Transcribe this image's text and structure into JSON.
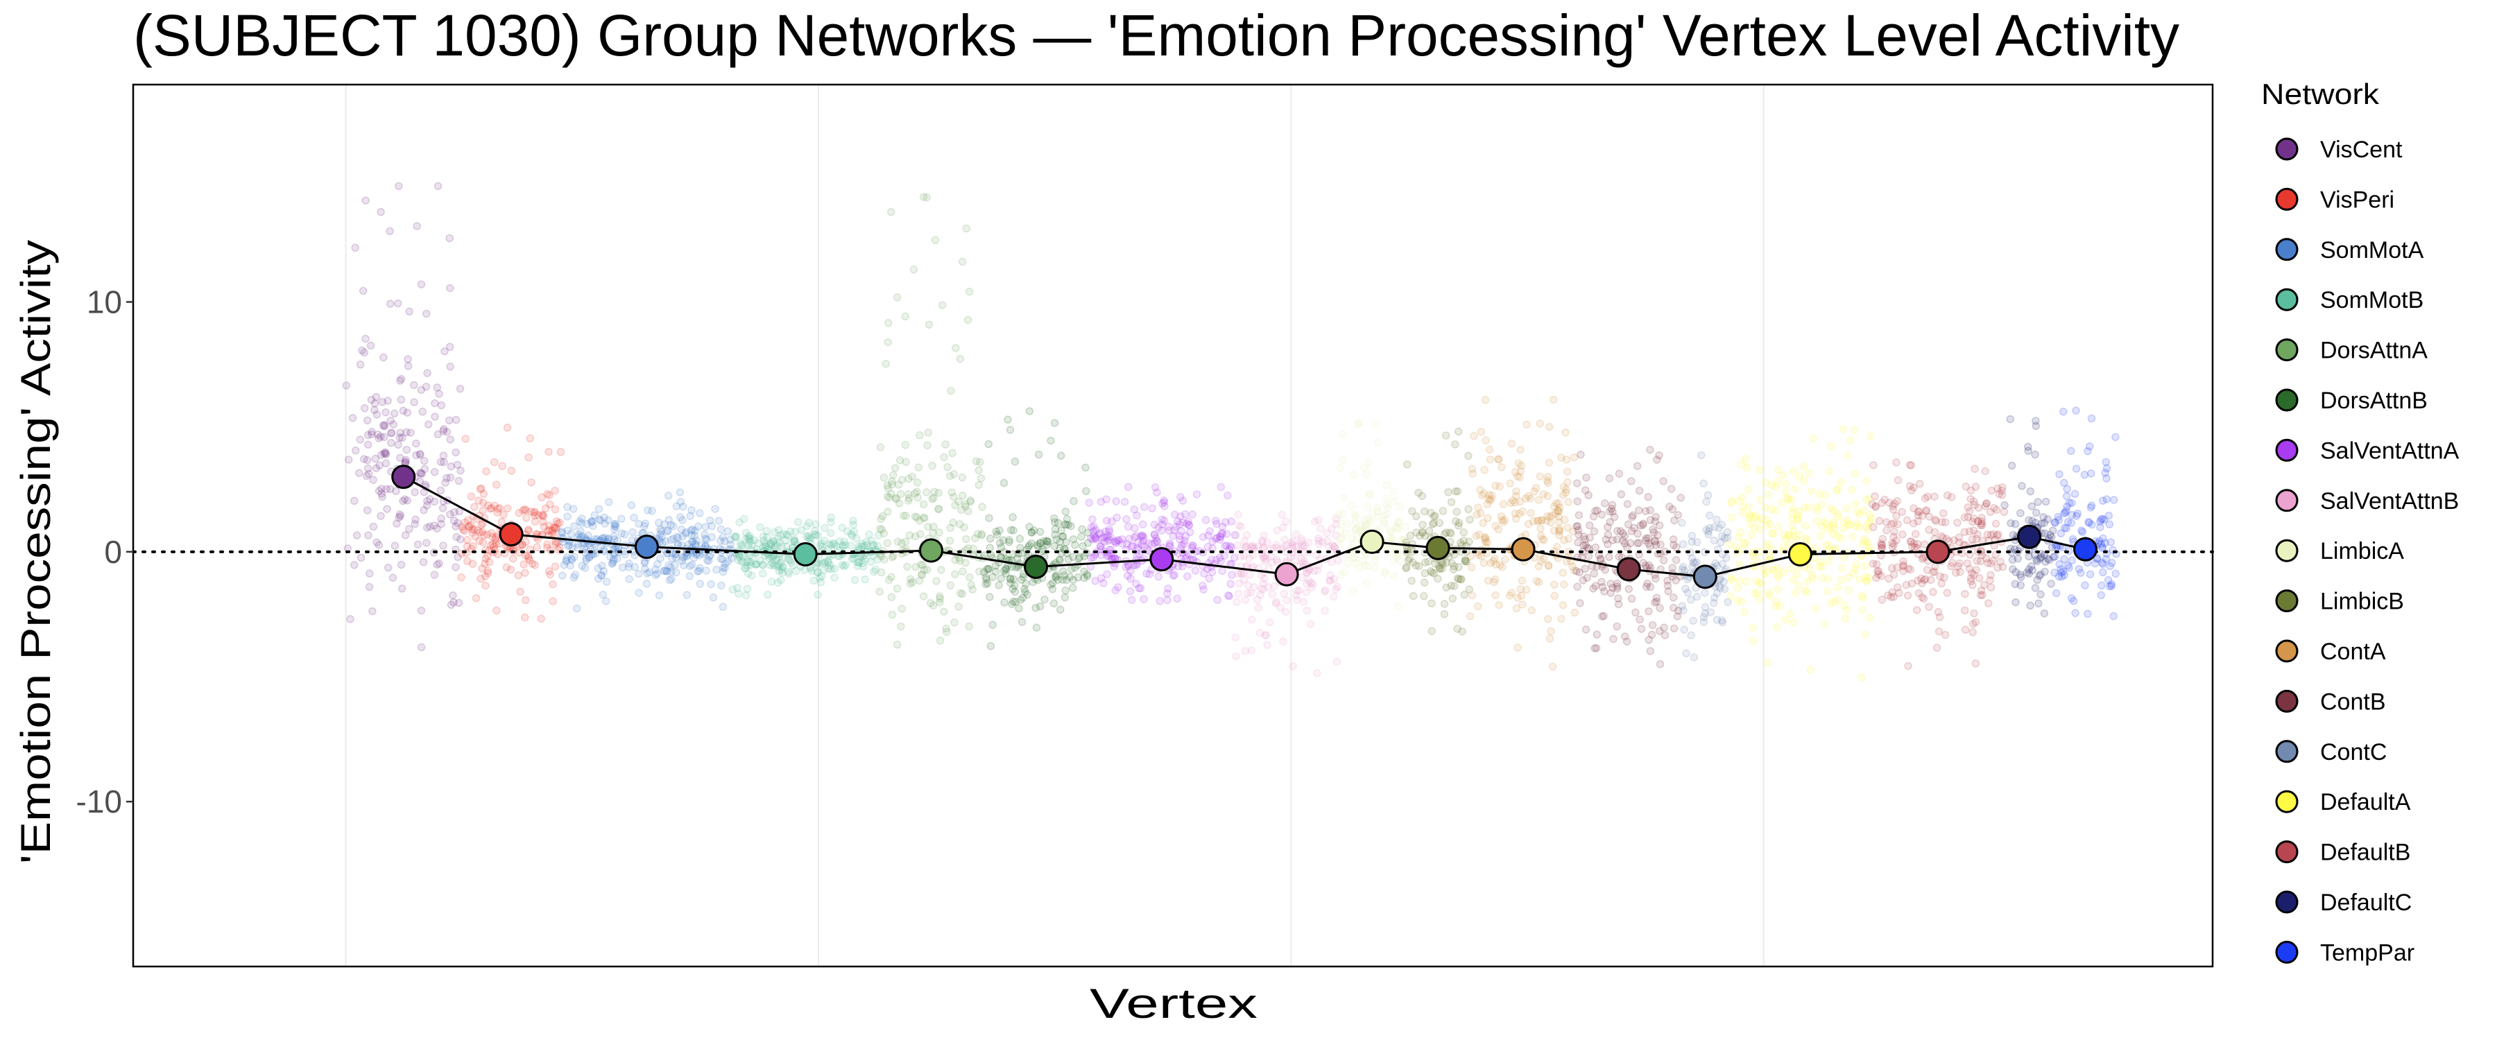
{
  "chart_data": {
    "type": "scatter",
    "title": "(SUBJECT 1030) Group Networks — 'Emotion Processing' Vertex Level Activity",
    "xlabel": "Vertex",
    "ylabel": "'Emotion Processing' Activity",
    "ylim": [
      -16.6,
      18.7
    ],
    "xlim": [
      -9000,
      79000
    ],
    "yticks": [
      10,
      0,
      -10
    ],
    "ytick_labels": [
      "10",
      "0",
      "-10"
    ],
    "x_gridlines": [
      0,
      20000,
      40000,
      60000
    ],
    "reference_line": {
      "y": 0,
      "style": "dotted"
    },
    "grid": true,
    "legend": {
      "title": "Network",
      "placement": "right"
    },
    "networks": [
      {
        "name": "VisCent",
        "color": "#71338A",
        "start": 0,
        "end": 4878,
        "mean": 3.0,
        "core": [
          -1.5,
          7.5
        ],
        "range": [
          -4.2,
          14.8
        ]
      },
      {
        "name": "VisPeri",
        "color": "#E8392F",
        "start": 4878,
        "end": 9122,
        "mean": 0.7,
        "core": [
          -1.0,
          2.2
        ],
        "range": [
          -2.7,
          5.0
        ]
      },
      {
        "name": "SomMotA",
        "color": "#4A7FCC",
        "start": 9122,
        "end": 16345,
        "mean": 0.2,
        "core": [
          -1.0,
          1.5
        ],
        "range": [
          -2.3,
          2.5
        ]
      },
      {
        "name": "SomMotB",
        "color": "#5BBE9E",
        "start": 16345,
        "end": 22553,
        "mean": -0.1,
        "core": [
          -1.0,
          1.0
        ],
        "range": [
          -1.8,
          1.5
        ]
      },
      {
        "name": "DorsAttnA",
        "color": "#6FA660",
        "start": 22553,
        "end": 26987,
        "mean": 0.05,
        "core": [
          -2.5,
          4.0
        ],
        "range": [
          -5.0,
          14.3
        ]
      },
      {
        "name": "DorsAttnB",
        "color": "#2A6A2A",
        "start": 26987,
        "end": 31422,
        "mean": -0.6,
        "core": [
          -2.0,
          1.5
        ],
        "range": [
          -3.8,
          5.8
        ]
      },
      {
        "name": "SalVentAttnA",
        "color": "#A93BF0",
        "start": 31422,
        "end": 37631,
        "mean": -0.3,
        "core": [
          -1.2,
          1.5
        ],
        "range": [
          -2.0,
          2.6
        ]
      },
      {
        "name": "SalVentAttnB",
        "color": "#EDA3D0",
        "start": 37631,
        "end": 42002,
        "mean": -0.9,
        "core": [
          -2.0,
          1.0
        ],
        "range": [
          -5.0,
          1.8
        ]
      },
      {
        "name": "LimbicA",
        "color": "#E9F3C0",
        "start": 42002,
        "end": 44853,
        "mean": 0.4,
        "core": [
          -1.0,
          2.0
        ],
        "range": [
          -3.0,
          6.0
        ]
      },
      {
        "name": "LimbicB",
        "color": "#6B7A33",
        "start": 44853,
        "end": 47577,
        "mean": 0.15,
        "core": [
          -2.0,
          2.0
        ],
        "range": [
          -3.5,
          5.0
        ]
      },
      {
        "name": "ContA",
        "color": "#D5954A",
        "start": 47577,
        "end": 52075,
        "mean": 0.1,
        "core": [
          -2.8,
          4.5
        ],
        "range": [
          -5.0,
          6.1
        ]
      },
      {
        "name": "ContB",
        "color": "#7A3442",
        "start": 52075,
        "end": 56509,
        "mean": -0.7,
        "core": [
          -3.0,
          3.0
        ],
        "range": [
          -4.6,
          4.5
        ]
      },
      {
        "name": "ContC",
        "color": "#7289B0",
        "start": 56509,
        "end": 58537,
        "mean": -1.0,
        "core": [
          -3.0,
          2.0
        ],
        "range": [
          -5.0,
          4.0
        ]
      },
      {
        "name": "DefaultA",
        "color": "#FFFA45",
        "start": 58537,
        "end": 64555,
        "mean": -0.1,
        "core": [
          -2.5,
          3.0
        ],
        "range": [
          -5.5,
          5.0
        ]
      },
      {
        "name": "DefaultB",
        "color": "#B8454F",
        "start": 64555,
        "end": 70193,
        "mean": 0.0,
        "core": [
          -2.5,
          3.0
        ],
        "range": [
          -5.0,
          4.5
        ]
      },
      {
        "name": "DefaultC",
        "color": "#1B1F6B",
        "start": 70193,
        "end": 72284,
        "mean": 0.6,
        "core": [
          -1.5,
          2.0
        ],
        "range": [
          -2.5,
          5.8
        ]
      },
      {
        "name": "TempPar",
        "color": "#1A3CF5",
        "start": 72284,
        "end": 74945,
        "mean": 0.1,
        "core": [
          -2.0,
          3.0
        ],
        "range": [
          -3.0,
          6.0
        ]
      }
    ]
  }
}
